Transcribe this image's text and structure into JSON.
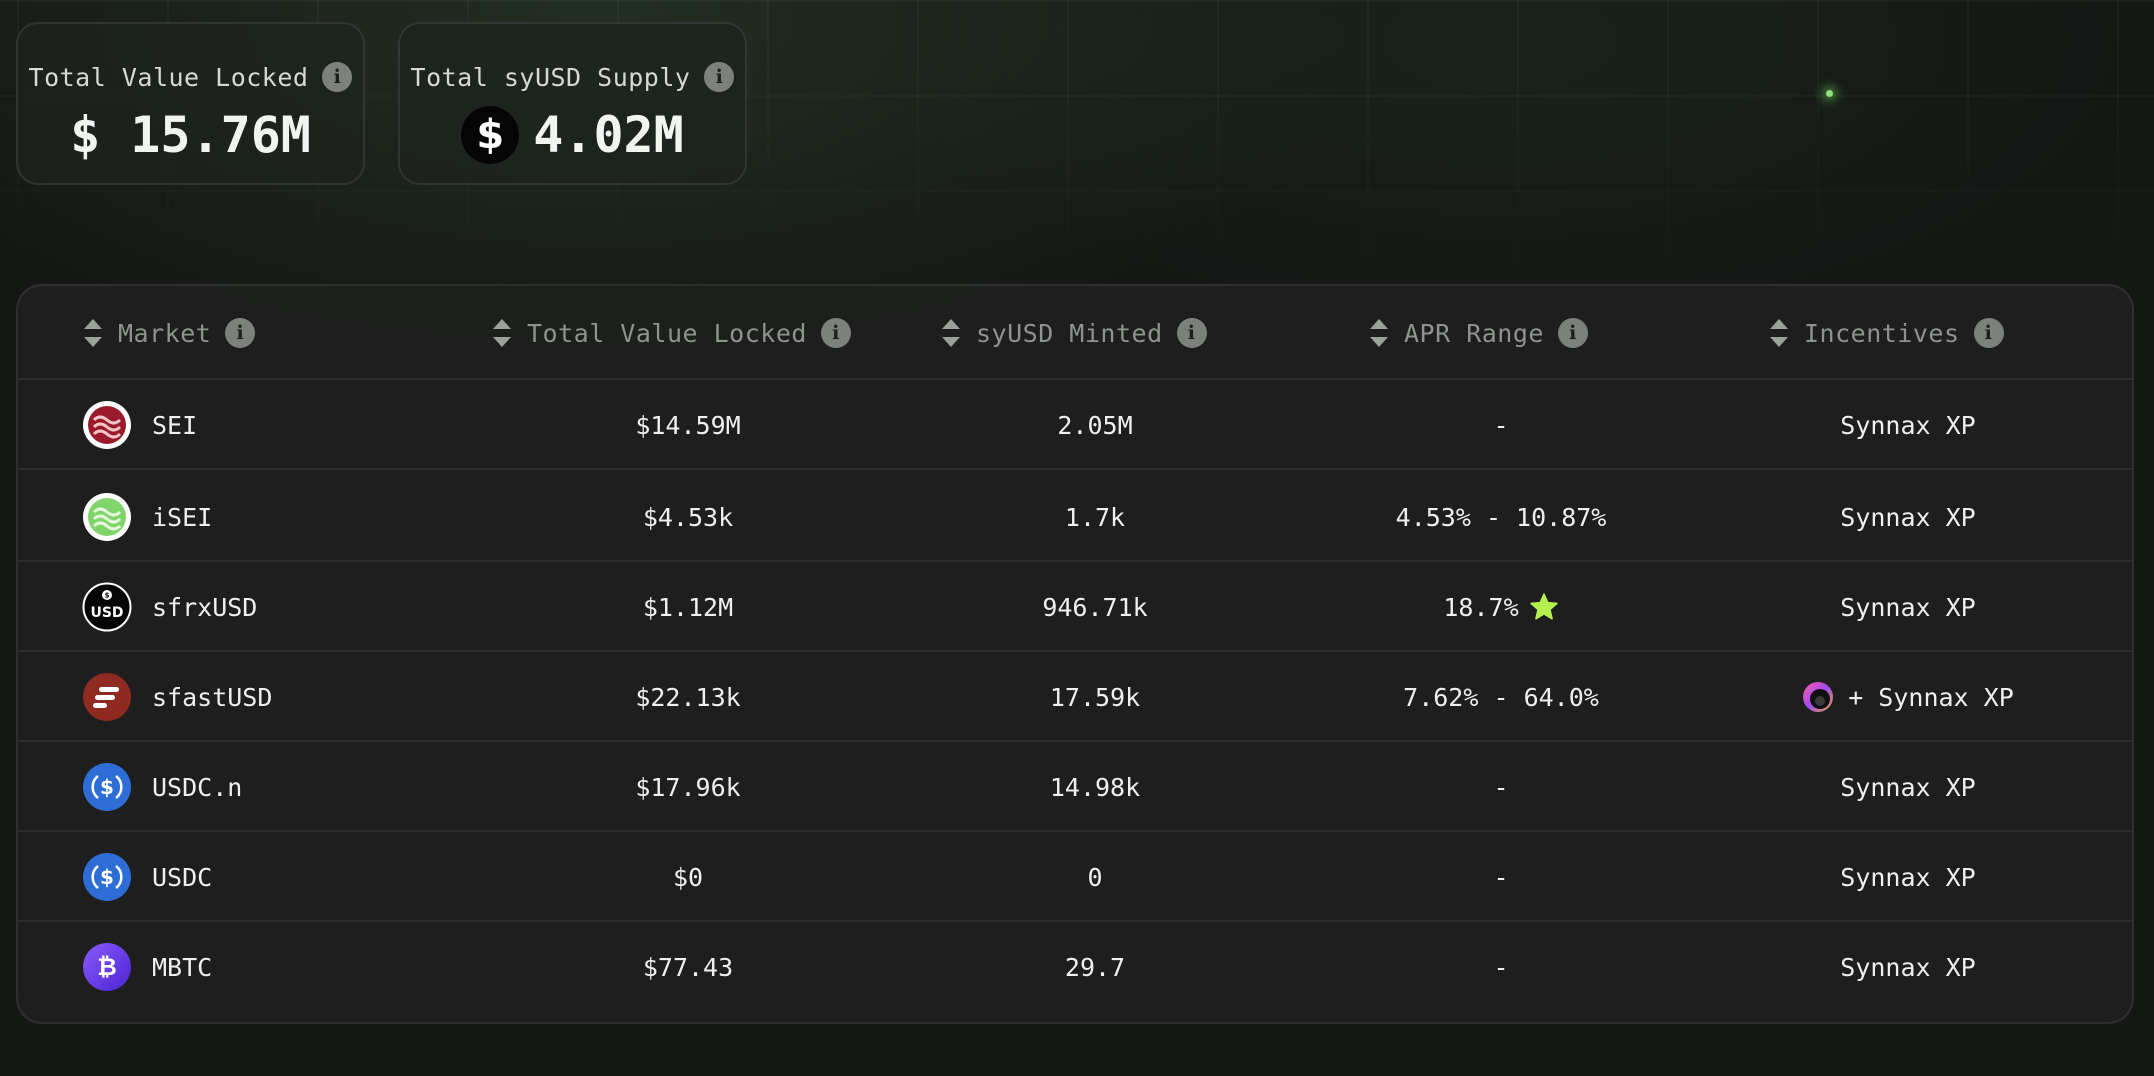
{
  "stats": {
    "tvl": {
      "label": "Total Value Locked",
      "value": "$ 15.76M"
    },
    "supply": {
      "label": "Total syUSD Supply",
      "coin_symbol": "$",
      "value": "4.02M"
    }
  },
  "table": {
    "columns": [
      {
        "label": "Market"
      },
      {
        "label": "Total Value Locked"
      },
      {
        "label": "syUSD Minted"
      },
      {
        "label": "APR Range"
      },
      {
        "label": "Incentives"
      }
    ],
    "rows": [
      {
        "market": "SEI",
        "icon": "sei-logo-icon",
        "tvl": "$14.59M",
        "minted": "2.05M",
        "apr": "-",
        "incentives": "Synnax XP"
      },
      {
        "market": "iSEI",
        "icon": "isei-logo-icon",
        "tvl": "$4.53k",
        "minted": "1.7k",
        "apr": "4.53% - 10.87%",
        "incentives": "Synnax XP"
      },
      {
        "market": "sfrxUSD",
        "icon": "sfrxusd-logo-icon",
        "tvl": "$1.12M",
        "minted": "946.71k",
        "apr": "18.7%",
        "apr_badge": "star-icon",
        "incentives": "Synnax XP"
      },
      {
        "market": "sfastUSD",
        "icon": "sfastusd-logo-icon",
        "tvl": "$22.13k",
        "minted": "17.59k",
        "apr": "7.62% - 64.0%",
        "incentives": "+ Synnax XP",
        "incentive_badge": "fast-points-icon"
      },
      {
        "market": "USDC.n",
        "icon": "usdc-logo-icon",
        "tvl": "$17.96k",
        "minted": "14.98k",
        "apr": "-",
        "incentives": "Synnax XP"
      },
      {
        "market": "USDC",
        "icon": "usdc-logo-icon",
        "tvl": "$0",
        "minted": "0",
        "apr": "-",
        "incentives": "Synnax XP"
      },
      {
        "market": "MBTC",
        "icon": "mbtc-logo-icon",
        "tvl": "$77.43",
        "minted": "29.7",
        "apr": "-",
        "incentives": "Synnax XP"
      }
    ]
  },
  "colors": {
    "background": "#151715",
    "card": "#1e221f",
    "text": "#eef0ee",
    "muted": "#8e938e",
    "star": "#b4f04e",
    "sei": "#9a1a2c",
    "isei": "#7fd46a",
    "sfast": "#8e2a22",
    "usdc": "#2e6dd6",
    "mbtc": "#6b3ff0"
  }
}
